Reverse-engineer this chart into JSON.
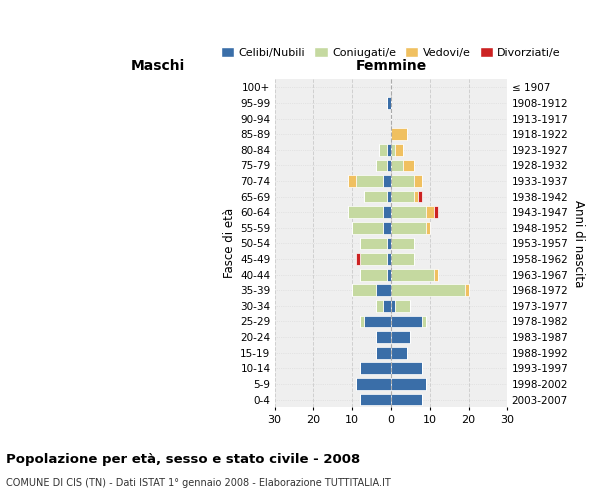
{
  "age_groups": [
    "0-4",
    "5-9",
    "10-14",
    "15-19",
    "20-24",
    "25-29",
    "30-34",
    "35-39",
    "40-44",
    "45-49",
    "50-54",
    "55-59",
    "60-64",
    "65-69",
    "70-74",
    "75-79",
    "80-84",
    "85-89",
    "90-94",
    "95-99",
    "100+"
  ],
  "birth_years": [
    "2003-2007",
    "1998-2002",
    "1993-1997",
    "1988-1992",
    "1983-1987",
    "1978-1982",
    "1973-1977",
    "1968-1972",
    "1963-1967",
    "1958-1962",
    "1953-1957",
    "1948-1952",
    "1943-1947",
    "1938-1942",
    "1933-1937",
    "1928-1932",
    "1923-1927",
    "1918-1922",
    "1913-1917",
    "1908-1912",
    "≤ 1907"
  ],
  "males": {
    "celibi": [
      8,
      9,
      8,
      4,
      4,
      7,
      2,
      4,
      1,
      1,
      1,
      2,
      2,
      1,
      2,
      1,
      1,
      0,
      0,
      1,
      0
    ],
    "coniugati": [
      0,
      0,
      0,
      0,
      0,
      1,
      2,
      6,
      7,
      7,
      7,
      8,
      9,
      6,
      7,
      3,
      2,
      0,
      0,
      0,
      0
    ],
    "vedovi": [
      0,
      0,
      0,
      0,
      0,
      0,
      0,
      0,
      0,
      0,
      0,
      0,
      0,
      0,
      2,
      0,
      0,
      0,
      0,
      0,
      0
    ],
    "divorziati": [
      0,
      0,
      0,
      0,
      0,
      0,
      0,
      0,
      0,
      1,
      0,
      0,
      0,
      0,
      0,
      0,
      0,
      0,
      0,
      0,
      0
    ]
  },
  "females": {
    "nubili": [
      8,
      9,
      8,
      4,
      5,
      8,
      1,
      0,
      0,
      0,
      0,
      0,
      0,
      0,
      0,
      0,
      0,
      0,
      0,
      0,
      0
    ],
    "coniugate": [
      0,
      0,
      0,
      0,
      0,
      1,
      4,
      19,
      11,
      6,
      6,
      9,
      9,
      6,
      6,
      3,
      1,
      0,
      0,
      0,
      0
    ],
    "vedove": [
      0,
      0,
      0,
      0,
      0,
      0,
      0,
      1,
      1,
      0,
      0,
      1,
      2,
      1,
      2,
      3,
      2,
      4,
      0,
      0,
      0
    ],
    "divorziate": [
      0,
      0,
      0,
      0,
      0,
      0,
      0,
      0,
      0,
      0,
      0,
      0,
      1,
      1,
      0,
      0,
      0,
      0,
      0,
      0,
      0
    ]
  },
  "colors": {
    "celibi_nubili": "#3a6ea8",
    "coniugati": "#c5d9a0",
    "vedovi": "#f0c060",
    "divorziati": "#cc2222"
  },
  "xlim": 30,
  "title": "Popolazione per età, sesso e stato civile - 2008",
  "subtitle": "COMUNE DI CIS (TN) - Dati ISTAT 1° gennaio 2008 - Elaborazione TUTTITALIA.IT",
  "ylabel_left": "Fasce di età",
  "ylabel_right": "Anni di nascita",
  "xlabel_left": "Maschi",
  "xlabel_right": "Femmine",
  "background_color": "#ffffff",
  "plot_bg_color": "#efefef",
  "grid_color": "#cccccc"
}
